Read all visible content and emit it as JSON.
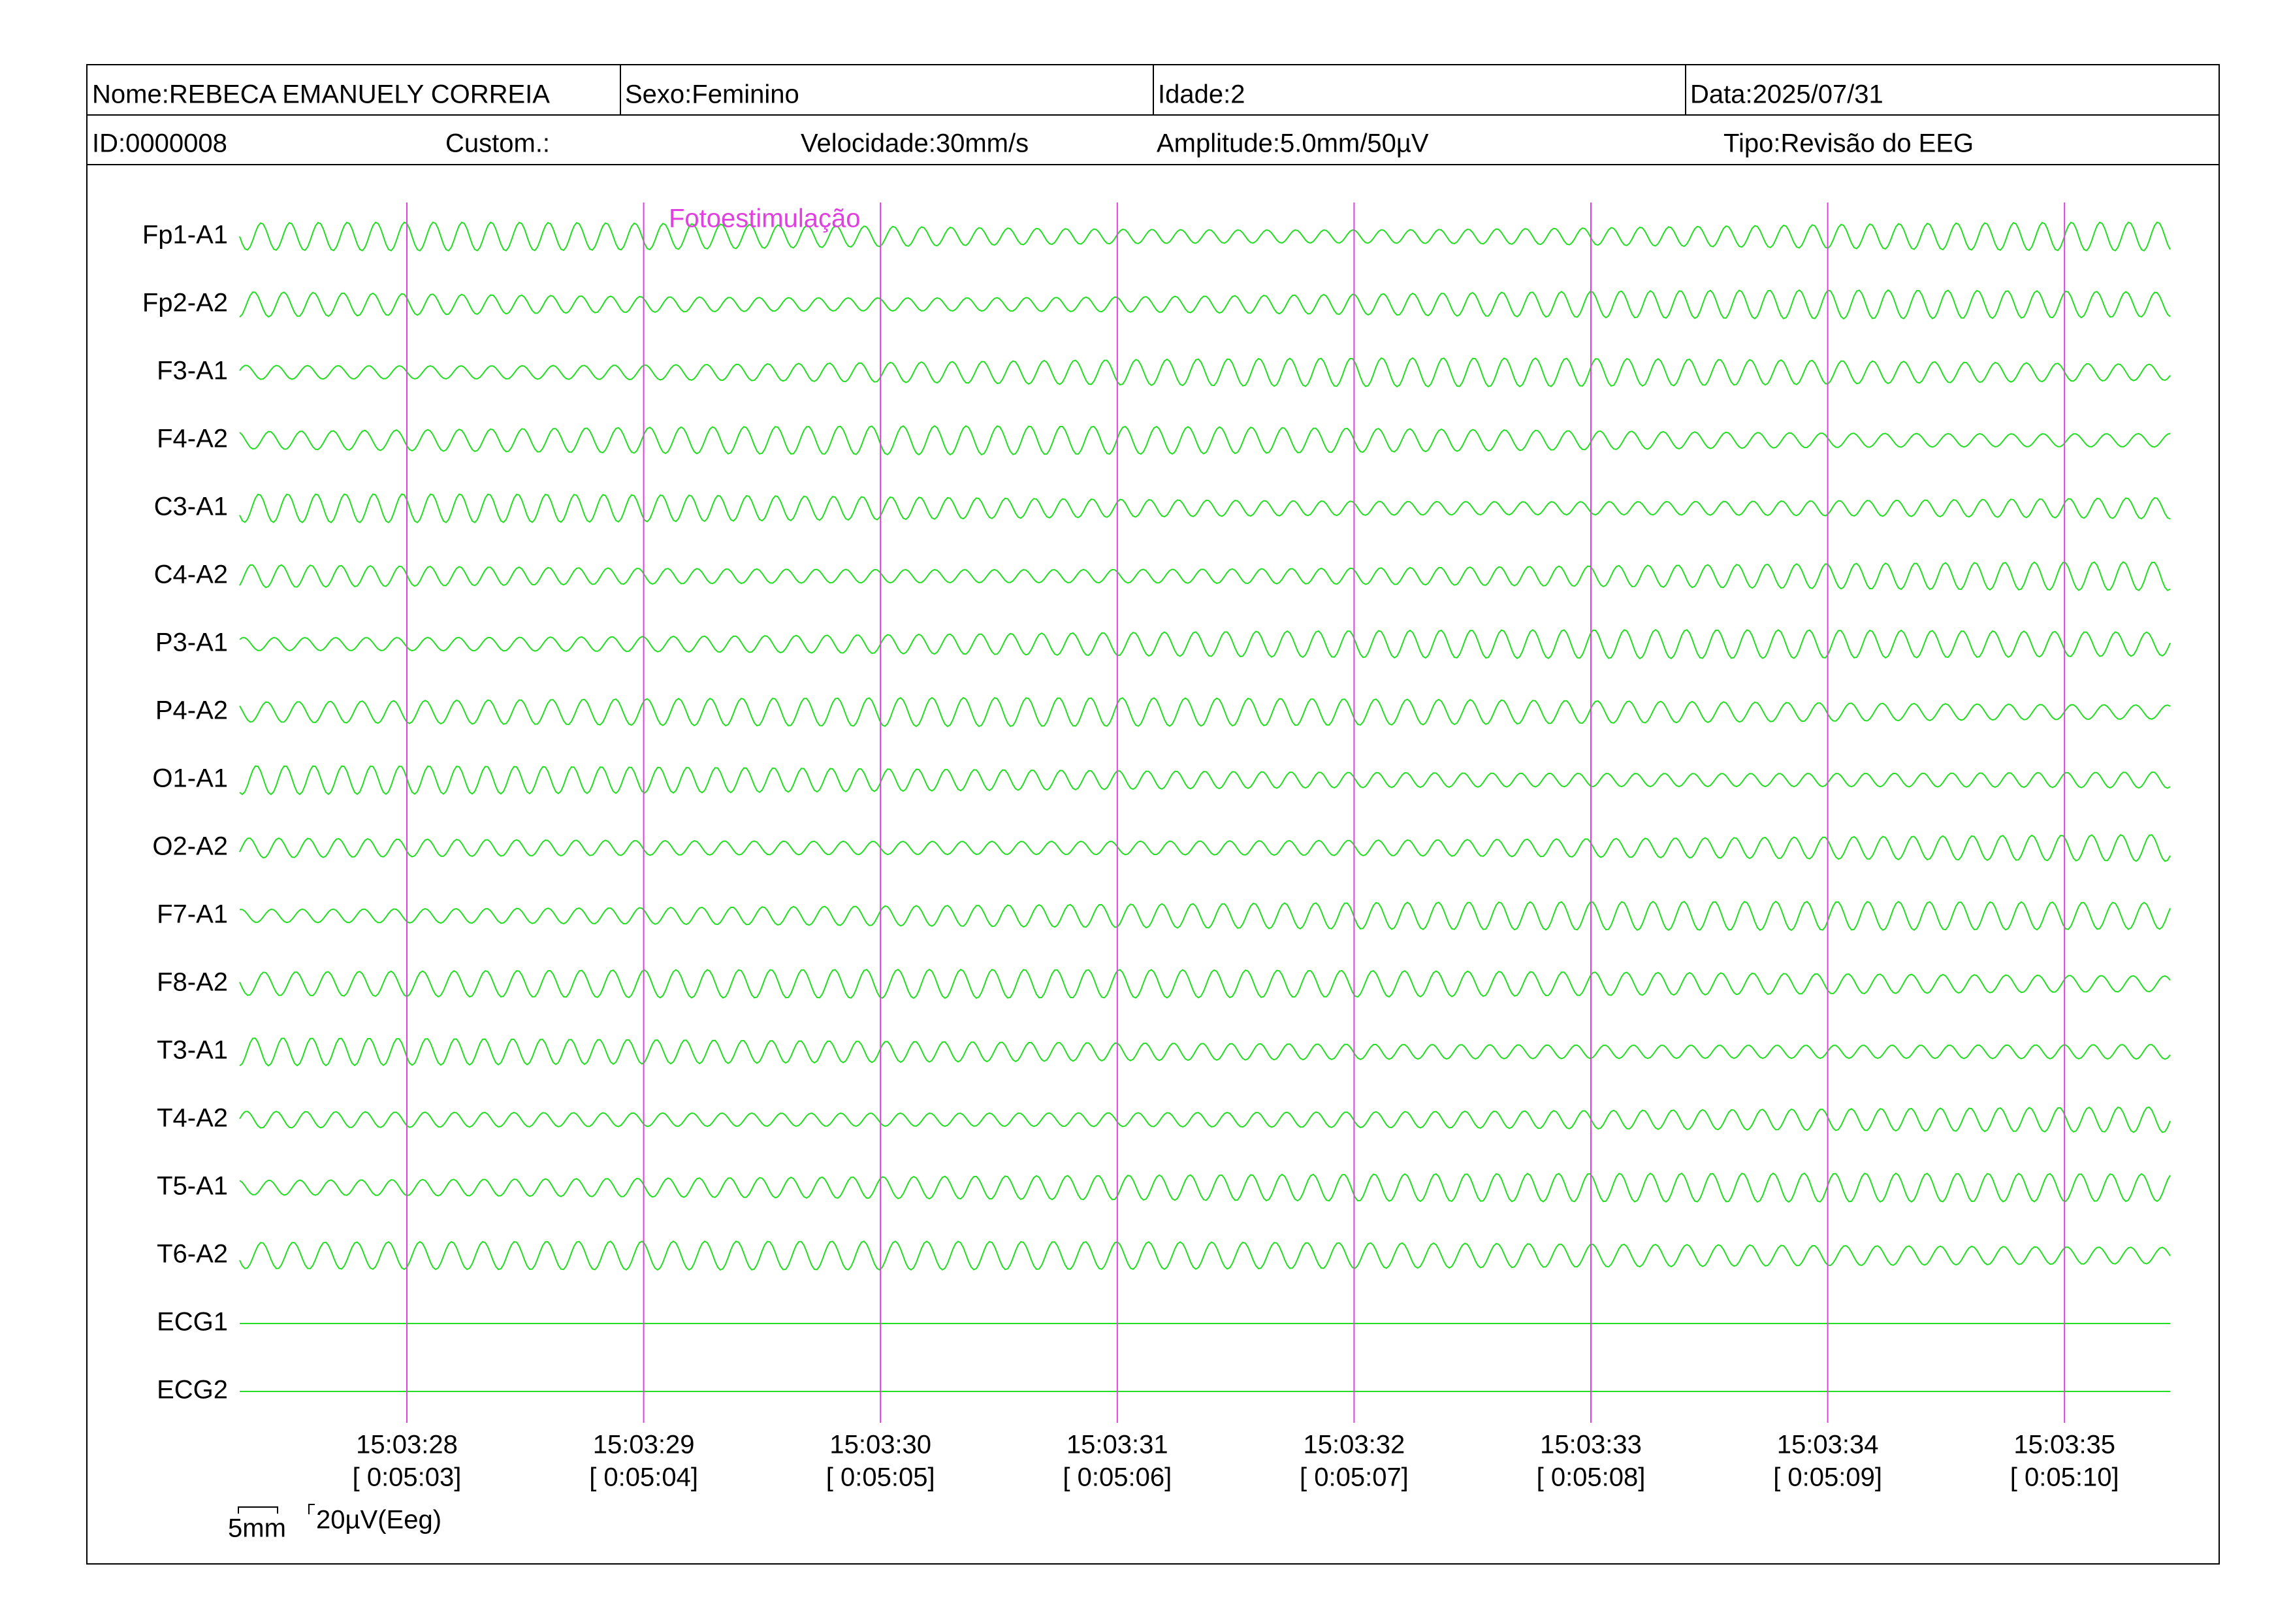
{
  "header": {
    "name": "Nome:REBECA EMANUELY CORREIA",
    "sex": "Sexo:Feminino",
    "age": "Idade:2",
    "date": "Data:2025/07/31",
    "id": "ID:0000008",
    "custom": "Custom.:",
    "speed": "Velocidade:30mm/s",
    "amplitude": "Amplitude:5.0mm/50µV",
    "type": "Tipo:Revisão do EEG"
  },
  "channels": [
    "Fp1-A1",
    "Fp2-A2",
    "F3-A1",
    "F4-A2",
    "C3-A1",
    "C4-A2",
    "P3-A1",
    "P4-A2",
    "O1-A1",
    "O2-A2",
    "F7-A1",
    "F8-A2",
    "T3-A1",
    "T4-A2",
    "T5-A1",
    "T6-A2",
    "ECG1",
    "ECG2"
  ],
  "markers": [
    {
      "time": "15:03:28",
      "elapsed": "[ 0:05:03]"
    },
    {
      "time": "15:03:29",
      "elapsed": "[ 0:05:04]"
    },
    {
      "time": "15:03:30",
      "elapsed": "[ 0:05:05]"
    },
    {
      "time": "15:03:31",
      "elapsed": "[ 0:05:06]"
    },
    {
      "time": "15:03:32",
      "elapsed": "[ 0:05:07]"
    },
    {
      "time": "15:03:33",
      "elapsed": "[ 0:05:08]"
    },
    {
      "time": "15:03:34",
      "elapsed": "[ 0:05:09]"
    },
    {
      "time": "15:03:35",
      "elapsed": "[ 0:05:10]"
    }
  ],
  "annotation": "Fotoestimulação",
  "scale": {
    "width": "5mm",
    "amplitude": "20µV(Eeg)"
  }
}
